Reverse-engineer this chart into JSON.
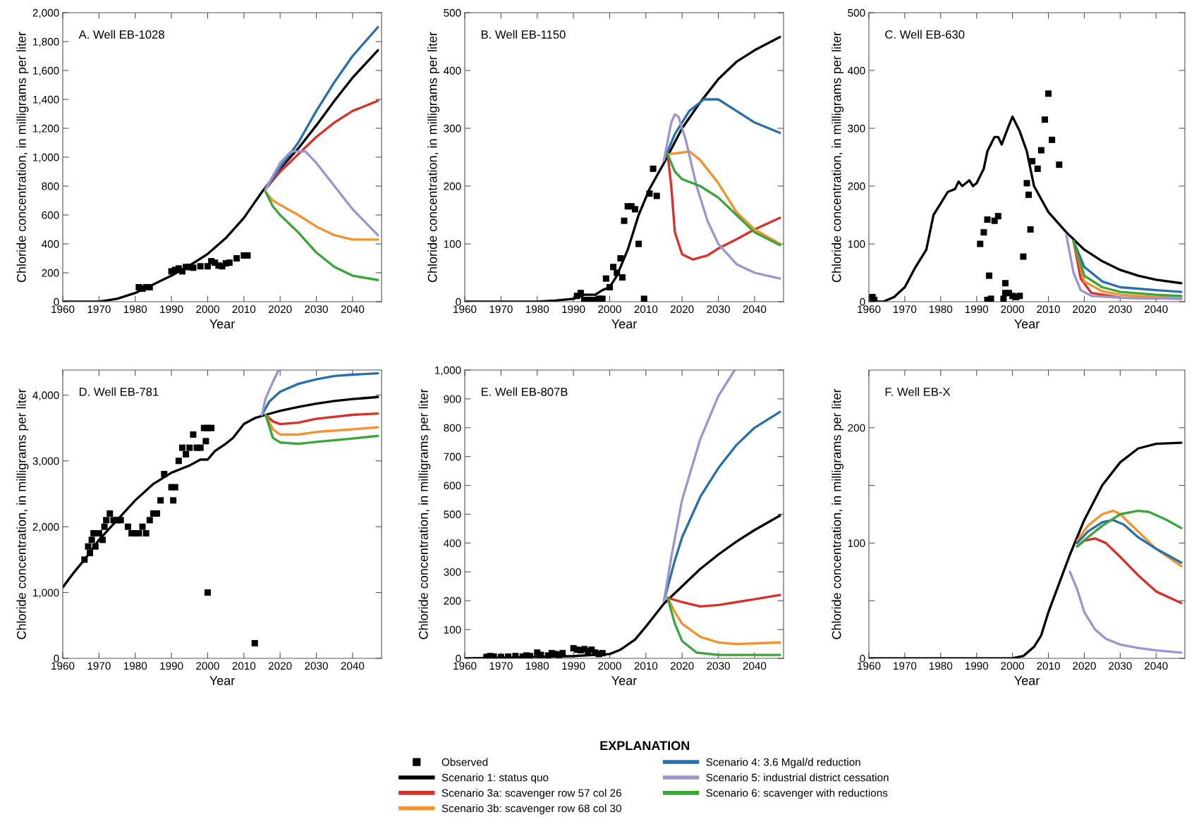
{
  "chart_data": [
    {
      "type": "line",
      "title": "A. Well EB-1028",
      "xlabel": "Year",
      "ylabel": "Chloride concentration, in milligrams per liter",
      "legend": "bottom",
      "legend_title": "EXPLANATION",
      "xlim": [
        1960,
        2048
      ],
      "xticks": [
        1960,
        1970,
        1980,
        1990,
        2000,
        2010,
        2020,
        2030,
        2040
      ],
      "ylim": [
        0,
        2000
      ],
      "yticks": [
        0,
        200,
        400,
        600,
        800,
        {
          "value": 1000,
          "label": "1,000"
        },
        {
          "value": 1200,
          "label": "1,200"
        },
        {
          "value": 1400,
          "label": "1,400"
        },
        {
          "value": 1600,
          "label": "1,600"
        },
        {
          "value": 1800,
          "label": "1,800"
        },
        {
          "value": 2000,
          "label": "2,000"
        }
      ],
      "series": [
        {
          "name": "Observed",
          "type": "scatter",
          "marker": "square",
          "color": "#000000",
          "x": [
            1981,
            1982,
            1983,
            1984,
            1990,
            1991,
            1992,
            1993,
            1994,
            1995,
            1996,
            1998,
            2000,
            2001,
            2002,
            2003,
            2004,
            2005,
            2006,
            2008,
            2010,
            2011
          ],
          "values": [
            100,
            90,
            100,
            100,
            210,
            220,
            230,
            210,
            240,
            240,
            235,
            245,
            245,
            280,
            270,
            250,
            245,
            265,
            270,
            300,
            320,
            320
          ]
        },
        {
          "name": "Scenario 1: status quo",
          "color": "#000000",
          "x": [
            1960,
            1970,
            1975,
            1980,
            1985,
            1990,
            1995,
            2000,
            2005,
            2010,
            2015,
            2020,
            2025,
            2030,
            2035,
            2040,
            2047
          ],
          "values": [
            0,
            0,
            20,
            60,
            120,
            180,
            250,
            330,
            440,
            580,
            760,
            920,
            1060,
            1220,
            1390,
            1550,
            1740
          ]
        },
        {
          "name": "Scenario 3a: scavenger row 57 col 26",
          "color": "#d7312a",
          "x": [
            2016,
            2020,
            2025,
            2030,
            2035,
            2040,
            2047
          ],
          "values": [
            780,
            900,
            1020,
            1140,
            1240,
            1320,
            1390
          ]
        },
        {
          "name": "Scenario 3b: scavenger row 68 col 30",
          "color": "#f4922f",
          "x": [
            2016,
            2018,
            2020,
            2025,
            2030,
            2035,
            2040,
            2047
          ],
          "values": [
            760,
            700,
            670,
            600,
            520,
            460,
            430,
            430
          ]
        },
        {
          "name": "Scenario 4: 3.6 Mgal/d reduction",
          "color": "#2a6fa8",
          "x": [
            2016,
            2020,
            2025,
            2030,
            2035,
            2040,
            2047
          ],
          "values": [
            780,
            930,
            1100,
            1320,
            1520,
            1700,
            1900
          ]
        },
        {
          "name": "Scenario 5: industrial district cessation",
          "color": "#9b95d0",
          "x": [
            2016,
            2020,
            2023,
            2027,
            2030,
            2035,
            2040,
            2047
          ],
          "values": [
            780,
            960,
            1040,
            1040,
            960,
            800,
            640,
            460
          ]
        },
        {
          "name": "Scenario 6: scavenger with reductions",
          "color": "#3aa53a",
          "x": [
            2016,
            2018,
            2020,
            2025,
            2030,
            2035,
            2040,
            2047
          ],
          "values": [
            760,
            660,
            600,
            480,
            340,
            240,
            180,
            150
          ]
        }
      ]
    },
    {
      "type": "line",
      "title": "B. Well EB-1150",
      "xlabel": "Year",
      "ylabel": "Chloride concentration, in milligrams per liter",
      "xlim": [
        1960,
        2048
      ],
      "xticks": [
        1960,
        1970,
        1980,
        1990,
        2000,
        2010,
        2020,
        2030,
        2040
      ],
      "ylim": [
        0,
        500
      ],
      "yticks": [
        0,
        100,
        200,
        300,
        400,
        500
      ],
      "series": [
        {
          "name": "Observed",
          "type": "scatter",
          "marker": "square",
          "color": "#000000",
          "x": [
            1991,
            1992,
            1993,
            1994,
            1995,
            1996,
            1997,
            1998,
            1999,
            2000,
            2001,
            2002,
            2003,
            2003.5,
            2004,
            2005,
            2006,
            2007,
            2008,
            2009.5,
            2011,
            2012,
            2013
          ],
          "values": [
            10,
            15,
            3,
            3,
            3,
            3,
            5,
            5,
            40,
            25,
            60,
            50,
            75,
            42,
            140,
            165,
            165,
            160,
            100,
            5,
            187,
            230,
            183
          ]
        },
        {
          "name": "Scenario 1: status quo",
          "color": "#000000",
          "x": [
            1960,
            1980,
            1985,
            1990,
            1993,
            1996,
            1998,
            2000,
            2002,
            2005,
            2008,
            2011,
            2015,
            2020,
            2025,
            2030,
            2035,
            2040,
            2047
          ],
          "values": [
            0,
            0,
            2,
            5,
            12,
            12,
            20,
            25,
            45,
            90,
            150,
            195,
            240,
            300,
            345,
            385,
            415,
            435,
            458
          ]
        },
        {
          "name": "Scenario 3a: scavenger row 57 col 26",
          "color": "#d7312a",
          "x": [
            2016,
            2017,
            2018,
            2020,
            2023,
            2027,
            2030,
            2035,
            2040,
            2047
          ],
          "values": [
            255,
            200,
            120,
            82,
            73,
            80,
            92,
            108,
            125,
            145
          ]
        },
        {
          "name": "Scenario 3b: scavenger row 68 col 30",
          "color": "#f4922f",
          "x": [
            2016,
            2020,
            2022,
            2025,
            2030,
            2035,
            2040,
            2047
          ],
          "values": [
            255,
            258,
            260,
            245,
            205,
            155,
            125,
            100
          ]
        },
        {
          "name": "Scenario 4: 3.6 Mgal/d reduction",
          "color": "#2a6fa8",
          "x": [
            2015,
            2018,
            2022,
            2026,
            2030,
            2035,
            2040,
            2047
          ],
          "values": [
            245,
            290,
            330,
            350,
            350,
            330,
            310,
            292
          ]
        },
        {
          "name": "Scenario 5: industrial district cessation",
          "color": "#9b95d0",
          "x": [
            2015,
            2017,
            2018,
            2019,
            2021,
            2024,
            2027,
            2030,
            2035,
            2040,
            2047
          ],
          "values": [
            245,
            310,
            324,
            320,
            280,
            200,
            140,
            100,
            65,
            50,
            40
          ]
        },
        {
          "name": "Scenario 6: scavenger with reductions",
          "color": "#3aa53a",
          "x": [
            2016,
            2018,
            2020,
            2025,
            2030,
            2035,
            2040,
            2047
          ],
          "values": [
            255,
            225,
            212,
            200,
            180,
            150,
            120,
            98
          ]
        }
      ]
    },
    {
      "type": "line",
      "title": "C. Well EB-630",
      "xlabel": "Year",
      "ylabel": "Chloride concentration, in milligrams per liter",
      "xlim": [
        1960,
        2048
      ],
      "xticks": [
        1960,
        1970,
        1980,
        1990,
        2000,
        2010,
        2020,
        2030,
        2040
      ],
      "ylim": [
        0,
        500
      ],
      "yticks": [
        0,
        100,
        200,
        300,
        400,
        500
      ],
      "series": [
        {
          "name": "Observed",
          "type": "scatter",
          "marker": "square",
          "color": "#000000",
          "x": [
            1961,
            1961.5,
            1991,
            1992,
            1993,
            1993.5,
            1993,
            1994,
            1995,
            1996,
            1998,
            1997.5,
            1998,
            1999,
            2000,
            2001,
            2002,
            2003,
            2004,
            2004.5,
            2005,
            2005.5,
            2007,
            2008,
            2009,
            2010,
            2011,
            2013
          ],
          "values": [
            8,
            3,
            100,
            120,
            142,
            45,
            3,
            5,
            140,
            148,
            32,
            5,
            15,
            15,
            10,
            8,
            10,
            78,
            205,
            185,
            125,
            243,
            230,
            262,
            315,
            360,
            280,
            237
          ]
        },
        {
          "name": "Scenario 1: status quo",
          "color": "#000000",
          "x": [
            1960,
            1964,
            1967,
            1970,
            1973,
            1976,
            1978,
            1980,
            1982,
            1984,
            1985,
            1986,
            1988,
            1989,
            1990,
            1992,
            1993,
            1995,
            1996,
            1997,
            1999,
            2000,
            2002,
            2004,
            2006,
            2010,
            2015,
            2020,
            2025,
            2030,
            2035,
            2040,
            2047
          ],
          "values": [
            0,
            0,
            8,
            25,
            60,
            90,
            150,
            170,
            190,
            195,
            208,
            200,
            210,
            200,
            205,
            230,
            260,
            285,
            285,
            272,
            305,
            320,
            295,
            260,
            200,
            155,
            120,
            90,
            70,
            55,
            45,
            38,
            32
          ]
        },
        {
          "name": "Scenario 3a: scavenger row 57 col 26",
          "color": "#d7312a",
          "x": [
            2017,
            2019,
            2022,
            2030,
            2047
          ],
          "values": [
            105,
            40,
            15,
            7,
            5
          ]
        },
        {
          "name": "Scenario 3b: scavenger row 68 col 30",
          "color": "#f4922f",
          "x": [
            2017,
            2020,
            2025,
            2030,
            2040,
            2047
          ],
          "values": [
            105,
            35,
            18,
            12,
            8,
            7
          ]
        },
        {
          "name": "Scenario 4: 3.6 Mgal/d reduction",
          "color": "#2a6fa8",
          "x": [
            2017,
            2020,
            2025,
            2030,
            2040,
            2047
          ],
          "values": [
            105,
            60,
            35,
            25,
            20,
            17
          ]
        },
        {
          "name": "Scenario 5: industrial district cessation",
          "color": "#9b95d0",
          "x": [
            2015,
            2017,
            2019,
            2022,
            2030,
            2047
          ],
          "values": [
            115,
            50,
            20,
            10,
            7,
            5
          ]
        },
        {
          "name": "Scenario 6: scavenger with reductions",
          "color": "#3aa53a",
          "x": [
            2017,
            2020,
            2025,
            2030,
            2040,
            2047
          ],
          "values": [
            105,
            45,
            25,
            17,
            12,
            10
          ]
        }
      ]
    },
    {
      "type": "line",
      "title": "D. Well EB-781",
      "xlabel": "Year",
      "ylabel": "Chloride concentration, in milligrams per liter",
      "xlim": [
        1960,
        2048
      ],
      "xticks": [
        1960,
        1970,
        1980,
        1990,
        2000,
        2010,
        2020,
        2030,
        2040
      ],
      "ylim": [
        0,
        4380
      ],
      "yticks": [
        0,
        {
          "value": 1000,
          "label": "1,000"
        },
        {
          "value": 2000,
          "label": "2,000"
        },
        {
          "value": 3000,
          "label": "3,000"
        },
        {
          "value": 4000,
          "label": "4,000"
        }
      ],
      "series": [
        {
          "name": "Observed",
          "type": "scatter",
          "marker": "square",
          "color": "#000000",
          "x": [
            1966,
            1967,
            1967.5,
            1968,
            1968.5,
            1969,
            1970,
            1971,
            1971.5,
            1972,
            1973,
            1974,
            1975,
            1976,
            1978,
            1979,
            1980,
            1981,
            1982,
            1983,
            1984,
            1985,
            1986,
            1987,
            1988,
            1990,
            1990.5,
            1991,
            1992,
            1993,
            1994,
            1995,
            1996,
            1997,
            1998,
            1999,
            1999.5,
            2000,
            2001,
            2000,
            2013
          ],
          "values": [
            1500,
            1700,
            1600,
            1800,
            1900,
            1700,
            1900,
            1800,
            2000,
            2100,
            2200,
            2100,
            2100,
            2100,
            2000,
            1900,
            1900,
            1900,
            2000,
            1900,
            2100,
            2200,
            2200,
            2400,
            2800,
            2600,
            2400,
            2600,
            3000,
            3200,
            3100,
            3200,
            3400,
            3200,
            3200,
            3500,
            3300,
            3500,
            3500,
            1000,
            230
          ]
        },
        {
          "name": "Scenario 1: status quo",
          "color": "#000000",
          "x": [
            1960,
            1963,
            1966,
            1970,
            1975,
            1980,
            1985,
            1990,
            1995,
            1998,
            2000,
            2002,
            2005,
            2007,
            2010,
            2013,
            2016,
            2020,
            2025,
            2030,
            2035,
            2040,
            2047
          ],
          "values": [
            1080,
            1300,
            1500,
            1800,
            2100,
            2400,
            2650,
            2820,
            2930,
            3020,
            3020,
            3150,
            3260,
            3350,
            3560,
            3650,
            3700,
            3760,
            3820,
            3870,
            3910,
            3940,
            3970
          ]
        },
        {
          "name": "Scenario 3a: scavenger row 57 col 26",
          "color": "#d7312a",
          "x": [
            2016,
            2018,
            2020,
            2025,
            2030,
            2040,
            2047
          ],
          "values": [
            3700,
            3600,
            3560,
            3580,
            3640,
            3700,
            3720
          ]
        },
        {
          "name": "Scenario 3b: scavenger row 68 col 30",
          "color": "#f4922f",
          "x": [
            2016,
            2018,
            2020,
            2025,
            2030,
            2040,
            2047
          ],
          "values": [
            3700,
            3480,
            3400,
            3400,
            3440,
            3480,
            3510
          ]
        },
        {
          "name": "Scenario 4: 3.6 Mgal/d reduction",
          "color": "#2a6fa8",
          "x": [
            2015,
            2017,
            2020,
            2025,
            2030,
            2035,
            2040,
            2047
          ],
          "values": [
            3700,
            3900,
            4050,
            4170,
            4240,
            4290,
            4310,
            4330
          ]
        },
        {
          "name": "Scenario 5: industrial district cessation",
          "color": "#9b95d0",
          "x": [
            2015,
            2016,
            2018,
            2019.5
          ],
          "values": [
            3700,
            3950,
            4200,
            4370
          ]
        },
        {
          "name": "Scenario 6: scavenger with reductions",
          "color": "#3aa53a",
          "x": [
            2016,
            2018,
            2020,
            2025,
            2030,
            2040,
            2047
          ],
          "values": [
            3700,
            3350,
            3280,
            3260,
            3290,
            3340,
            3380
          ]
        }
      ]
    },
    {
      "type": "line",
      "title": "E. Well EB-807B",
      "xlabel": "Year",
      "ylabel": "Chloride concentration, in milligrams per liter",
      "xlim": [
        1960,
        2048
      ],
      "xticks": [
        1960,
        1970,
        1980,
        1990,
        2000,
        2010,
        2020,
        2030,
        2040
      ],
      "ylim": [
        0,
        1000
      ],
      "yticks": [
        0,
        100,
        200,
        300,
        400,
        500,
        600,
        700,
        800,
        900,
        {
          "value": 1000,
          "label": "1,000"
        }
      ],
      "series": [
        {
          "name": "Observed",
          "type": "scatter",
          "marker": "square",
          "color": "#000000",
          "x": [
            1966,
            1967,
            1968,
            1970,
            1972,
            1974,
            1976,
            1977,
            1978,
            1980,
            1981,
            1983,
            1984,
            1985,
            1986,
            1987,
            1990,
            1991,
            1992,
            1993,
            1994,
            1995,
            1996,
            1997,
            1998
          ],
          "values": [
            5,
            8,
            6,
            5,
            6,
            8,
            6,
            10,
            8,
            20,
            12,
            10,
            18,
            15,
            12,
            18,
            35,
            30,
            28,
            32,
            25,
            30,
            20,
            15,
            18
          ]
        },
        {
          "name": "Scenario 1: status quo",
          "color": "#000000",
          "x": [
            1960,
            1970,
            1980,
            1990,
            2000,
            2003,
            2007,
            2010,
            2015,
            2020,
            2025,
            2030,
            2035,
            2040,
            2047
          ],
          "values": [
            0,
            2,
            5,
            8,
            15,
            30,
            65,
            110,
            190,
            250,
            310,
            360,
            405,
            445,
            495
          ]
        },
        {
          "name": "Scenario 3a: scavenger row 57 col 26",
          "color": "#d7312a",
          "x": [
            2016,
            2020,
            2025,
            2030,
            2035,
            2040,
            2047
          ],
          "values": [
            210,
            195,
            180,
            185,
            195,
            205,
            220
          ]
        },
        {
          "name": "Scenario 3b: scavenger row 68 col 30",
          "color": "#f4922f",
          "x": [
            2016,
            2018,
            2020,
            2025,
            2030,
            2035,
            2040,
            2047
          ],
          "values": [
            210,
            160,
            120,
            75,
            55,
            50,
            52,
            55
          ]
        },
        {
          "name": "Scenario 4: 3.6 Mgal/d reduction",
          "color": "#2a6fa8",
          "x": [
            2015,
            2018,
            2020,
            2025,
            2030,
            2035,
            2040,
            2047
          ],
          "values": [
            200,
            340,
            420,
            560,
            660,
            740,
            800,
            855
          ]
        },
        {
          "name": "Scenario 5: industrial district cessation",
          "color": "#9b95d0",
          "x": [
            2015,
            2017,
            2020,
            2025,
            2030,
            2034.5
          ],
          "values": [
            200,
            350,
            550,
            760,
            910,
            1000
          ]
        },
        {
          "name": "Scenario 6: scavenger with reductions",
          "color": "#3aa53a",
          "x": [
            2016,
            2018,
            2020,
            2024,
            2030,
            2040,
            2047
          ],
          "values": [
            210,
            120,
            60,
            20,
            12,
            12,
            12
          ]
        }
      ]
    },
    {
      "type": "line",
      "title": "F. Well EB-X",
      "xlabel": "Year",
      "ylabel": "Chloride concentration, in milligrams per liter",
      "xlim": [
        1960,
        2048
      ],
      "xticks": [
        1960,
        1970,
        1980,
        1990,
        2000,
        2010,
        2020,
        2030,
        2040
      ],
      "ylim": [
        0,
        250
      ],
      "yticks": [
        0,
        {
          "value": 50,
          "label": null
        },
        100,
        {
          "value": 150,
          "label": null
        },
        200
      ],
      "series": [
        {
          "name": "Scenario 1: status quo",
          "color": "#000000",
          "x": [
            1960,
            2000,
            2003,
            2006,
            2008,
            2010,
            2013,
            2016,
            2020,
            2025,
            2030,
            2035,
            2040,
            2047
          ],
          "values": [
            0,
            0,
            2,
            10,
            20,
            40,
            65,
            90,
            120,
            150,
            170,
            182,
            186,
            187
          ]
        },
        {
          "name": "Scenario 3a: scavenger row 57 col 26",
          "color": "#d7312a",
          "x": [
            2018,
            2020,
            2023,
            2026,
            2030,
            2035,
            2040,
            2047
          ],
          "values": [
            97,
            102,
            104,
            100,
            88,
            72,
            58,
            48
          ]
        },
        {
          "name": "Scenario 3b: scavenger row 68 col 30",
          "color": "#f4922f",
          "x": [
            2018,
            2021,
            2025,
            2028,
            2030,
            2035,
            2040,
            2047
          ],
          "values": [
            102,
            115,
            125,
            128,
            125,
            110,
            95,
            80
          ]
        },
        {
          "name": "Scenario 4: 3.6 Mgal/d reduction",
          "color": "#2a6fa8",
          "x": [
            2018,
            2021,
            2025,
            2028,
            2031,
            2035,
            2040,
            2047
          ],
          "values": [
            100,
            110,
            118,
            120,
            116,
            105,
            95,
            83
          ]
        },
        {
          "name": "Scenario 5: industrial district cessation",
          "color": "#9b95d0",
          "x": [
            2016,
            2018,
            2020,
            2023,
            2026,
            2030,
            2035,
            2040,
            2047
          ],
          "values": [
            75,
            60,
            40,
            25,
            17,
            12,
            9,
            7,
            5
          ]
        },
        {
          "name": "Scenario 6: scavenger with reductions",
          "color": "#3aa53a",
          "x": [
            2018,
            2021,
            2025,
            2030,
            2035,
            2038,
            2043,
            2047
          ],
          "values": [
            97,
            105,
            115,
            125,
            128,
            127,
            120,
            113
          ]
        }
      ]
    }
  ]
}
